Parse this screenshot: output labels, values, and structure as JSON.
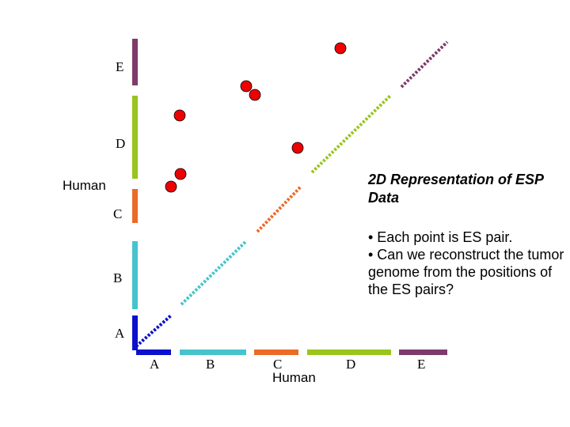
{
  "title": "2D Representation of ESP Data",
  "bullets": [
    "• Each point is ES pair.",
    "• Can we reconstruct the tumor genome from the positions of the ES pairs?"
  ],
  "x_axis": {
    "label": "Human",
    "segments": [
      {
        "name": "A",
        "color": "#0a10cc"
      },
      {
        "name": "B",
        "color": "#45c4cc"
      },
      {
        "name": "C",
        "color": "#ec6a28"
      },
      {
        "name": "D",
        "color": "#9ac41e"
      },
      {
        "name": "E",
        "color": "#7f3a6c"
      }
    ]
  },
  "y_axis": {
    "label": "Human",
    "segments": [
      {
        "name": "A",
        "color": "#0a10cc"
      },
      {
        "name": "B",
        "color": "#45c4cc"
      },
      {
        "name": "C",
        "color": "#ec6a28"
      },
      {
        "name": "D",
        "color": "#9ac41e"
      },
      {
        "name": "E",
        "color": "#7f3a6c"
      }
    ]
  },
  "diagonal": [
    {
      "segment": "A",
      "color": "#0a10cc"
    },
    {
      "segment": "B",
      "color": "#45c4cc"
    },
    {
      "segment": "C",
      "color": "#ec6a28"
    },
    {
      "segment": "D",
      "color": "#9ac41e"
    },
    {
      "segment": "E",
      "color": "#7f3a6c"
    }
  ],
  "points_color": "#ee0000"
}
